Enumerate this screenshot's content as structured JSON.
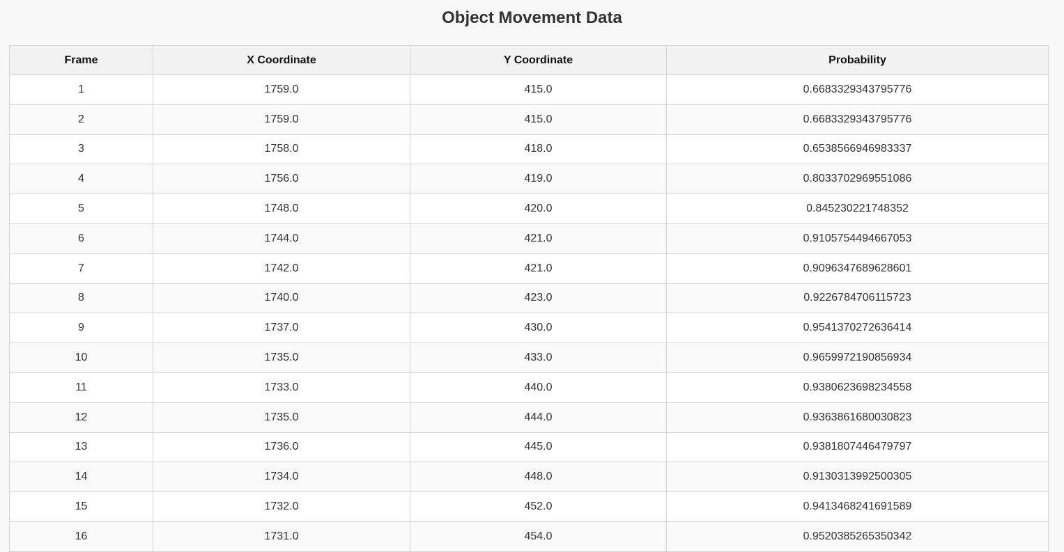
{
  "page": {
    "title": "Object Movement Data"
  },
  "table": {
    "columns": [
      "Frame",
      "X Coordinate",
      "Y Coordinate",
      "Probability"
    ],
    "rows": [
      [
        "1",
        "1759.0",
        "415.0",
        "0.6683329343795776"
      ],
      [
        "2",
        "1759.0",
        "415.0",
        "0.6683329343795776"
      ],
      [
        "3",
        "1758.0",
        "418.0",
        "0.6538566946983337"
      ],
      [
        "4",
        "1756.0",
        "419.0",
        "0.8033702969551086"
      ],
      [
        "5",
        "1748.0",
        "420.0",
        "0.845230221748352"
      ],
      [
        "6",
        "1744.0",
        "421.0",
        "0.9105754494667053"
      ],
      [
        "7",
        "1742.0",
        "421.0",
        "0.9096347689628601"
      ],
      [
        "8",
        "1740.0",
        "423.0",
        "0.9226784706115723"
      ],
      [
        "9",
        "1737.0",
        "430.0",
        "0.9541370272636414"
      ],
      [
        "10",
        "1735.0",
        "433.0",
        "0.9659972190856934"
      ],
      [
        "11",
        "1733.0",
        "440.0",
        "0.9380623698234558"
      ],
      [
        "12",
        "1735.0",
        "444.0",
        "0.9363861680030823"
      ],
      [
        "13",
        "1736.0",
        "445.0",
        "0.9381807446479797"
      ],
      [
        "14",
        "1734.0",
        "448.0",
        "0.9130313992500305"
      ],
      [
        "15",
        "1732.0",
        "452.0",
        "0.9413468241691589"
      ],
      [
        "16",
        "1731.0",
        "454.0",
        "0.9520385265350342"
      ]
    ]
  }
}
